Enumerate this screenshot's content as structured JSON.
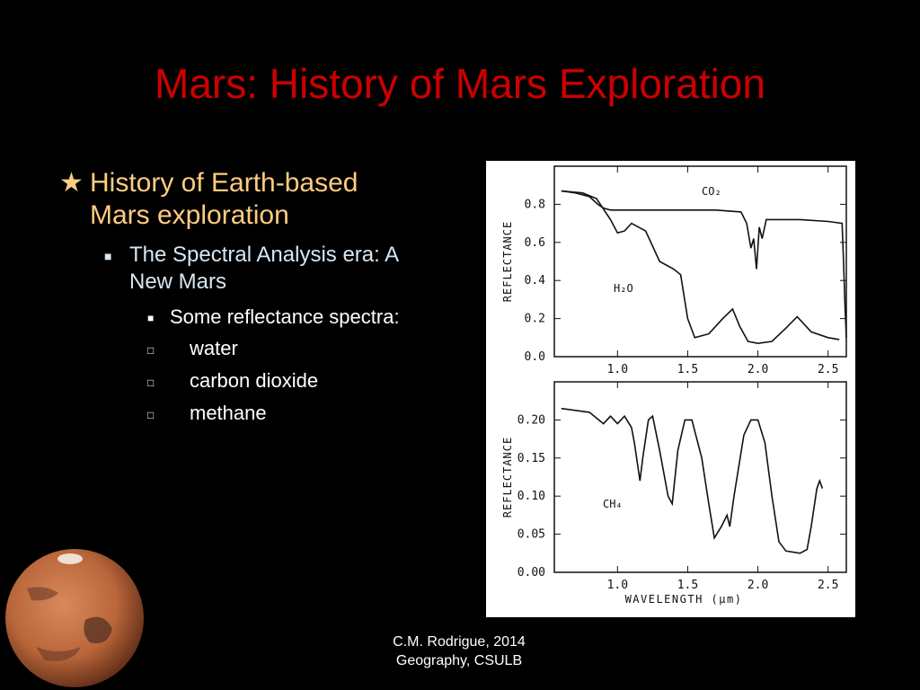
{
  "title": "Mars: History of Mars Exploration",
  "bullets": [
    {
      "text": "History of Earth-based Mars exploration",
      "children": [
        {
          "text": "The Spectral Analysis era: A New Mars",
          "children": [
            {
              "text": "Some reflectance spectra:"
            }
          ]
        }
      ]
    }
  ],
  "list_items": [
    "water",
    "carbon dioxide",
    "methane"
  ],
  "footer": [
    "C.M. Rodrigue, 2014",
    "Geography, CSULB"
  ],
  "chart_data": [
    {
      "type": "line",
      "ylabel": "REFLECTANCE",
      "xlim": [
        0.55,
        2.63
      ],
      "ylim": [
        0,
        1.0
      ],
      "xticks": [
        {
          "value": 1.0,
          "label": "1.0"
        },
        1.5,
        {
          "value": 2.0,
          "label": "2.0"
        },
        2.5
      ],
      "yticks": [
        {
          "value": 0,
          "label": "0.0"
        },
        0.2,
        0.4,
        0.6,
        0.8
      ],
      "series": [
        {
          "name": "CO₂",
          "color": "#111111",
          "x": [
            0.6,
            0.7,
            0.8,
            0.86,
            0.9,
            0.95,
            1.1,
            1.3,
            1.5,
            1.7,
            1.88,
            1.92,
            1.95,
            1.97,
            1.99,
            2.01,
            2.03,
            2.06,
            2.1,
            2.3,
            2.5,
            2.6,
            2.61,
            2.62,
            2.63
          ],
          "values": [
            0.87,
            0.86,
            0.84,
            0.8,
            0.78,
            0.77,
            0.77,
            0.77,
            0.77,
            0.77,
            0.76,
            0.7,
            0.57,
            0.62,
            0.46,
            0.68,
            0.62,
            0.72,
            0.72,
            0.72,
            0.71,
            0.7,
            0.5,
            0.28,
            0.1
          ]
        },
        {
          "name": "H₂O",
          "color": "#111111",
          "x": [
            0.6,
            0.75,
            0.85,
            0.95,
            1.0,
            1.05,
            1.1,
            1.2,
            1.3,
            1.4,
            1.45,
            1.5,
            1.55,
            1.65,
            1.75,
            1.82,
            1.87,
            1.93,
            2.0,
            2.1,
            2.2,
            2.28,
            2.38,
            2.5,
            2.58
          ],
          "values": [
            0.87,
            0.86,
            0.83,
            0.72,
            0.65,
            0.66,
            0.7,
            0.66,
            0.5,
            0.46,
            0.43,
            0.2,
            0.1,
            0.12,
            0.2,
            0.25,
            0.16,
            0.08,
            0.07,
            0.08,
            0.15,
            0.21,
            0.13,
            0.1,
            0.09
          ]
        }
      ]
    },
    {
      "type": "line",
      "xlabel": "WAVELENGTH (μm)",
      "ylabel": "REFLECTANCE",
      "xlim": [
        0.55,
        2.63
      ],
      "ylim": [
        0,
        0.25
      ],
      "xticks": [
        {
          "value": 1.0,
          "label": "1.0"
        },
        1.5,
        {
          "value": 2.0,
          "label": "2.0"
        },
        2.5
      ],
      "yticks": [
        {
          "value": 0,
          "label": "0.00"
        },
        {
          "value": 0.05,
          "label": "0.05"
        },
        {
          "value": 0.1,
          "label": "0.10"
        },
        {
          "value": 0.15,
          "label": "0.15"
        },
        {
          "value": 0.2,
          "label": "0.20"
        }
      ],
      "series": [
        {
          "name": "CH₄",
          "color": "#111111",
          "x": [
            0.6,
            0.8,
            0.9,
            0.95,
            1.0,
            1.05,
            1.1,
            1.12,
            1.16,
            1.18,
            1.22,
            1.25,
            1.3,
            1.36,
            1.39,
            1.43,
            1.48,
            1.53,
            1.6,
            1.65,
            1.69,
            1.74,
            1.78,
            1.8,
            1.83,
            1.9,
            1.95,
            2.0,
            2.05,
            2.1,
            2.15,
            2.2,
            2.3,
            2.35,
            2.38,
            2.42,
            2.44,
            2.46
          ],
          "values": [
            0.215,
            0.21,
            0.195,
            0.205,
            0.195,
            0.205,
            0.19,
            0.17,
            0.12,
            0.15,
            0.2,
            0.205,
            0.16,
            0.1,
            0.09,
            0.16,
            0.2,
            0.2,
            0.15,
            0.09,
            0.045,
            0.06,
            0.075,
            0.06,
            0.1,
            0.18,
            0.2,
            0.2,
            0.17,
            0.1,
            0.04,
            0.028,
            0.025,
            0.03,
            0.06,
            0.11,
            0.12,
            0.11
          ]
        }
      ]
    }
  ]
}
